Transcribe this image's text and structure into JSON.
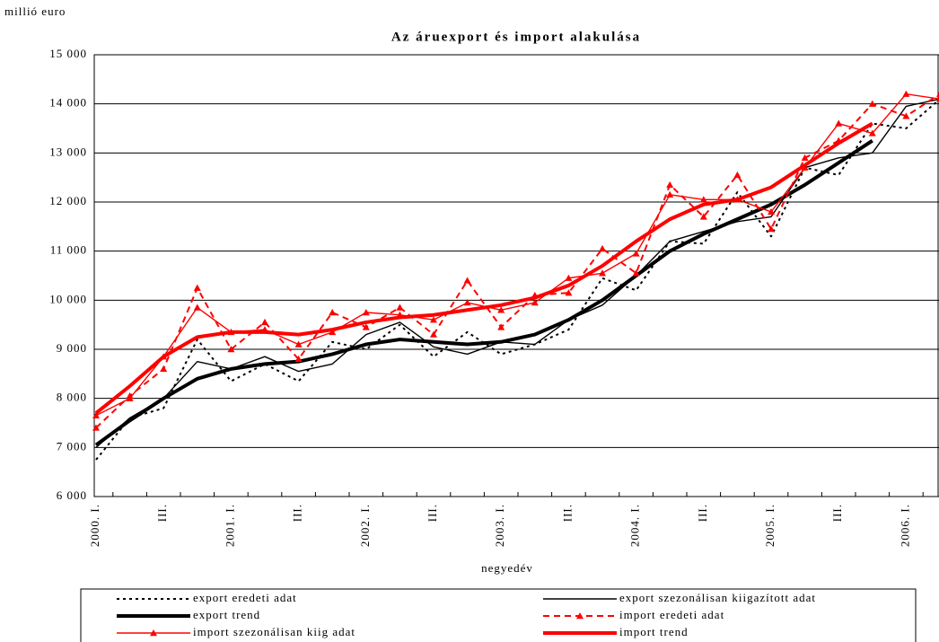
{
  "chart_data": {
    "type": "line",
    "title": "Az áruexport és import alakulása",
    "y_label": "millió euro",
    "x_label": "negyedév",
    "categories": [
      "2000. I.",
      null,
      "III.",
      null,
      "2001. I.",
      null,
      "III.",
      null,
      "2002. I.",
      null,
      "III.",
      null,
      "2003. I.",
      null,
      "III.",
      null,
      "2004. I.",
      null,
      "III.",
      null,
      "2005. I.",
      null,
      "III.",
      null,
      "2006. I.",
      null
    ],
    "ylim": [
      6000,
      15000
    ],
    "yticks": [
      {
        "value": 6000,
        "label": "6 000"
      },
      {
        "value": 7000,
        "label": "7 000"
      },
      {
        "value": 8000,
        "label": "8 000"
      },
      {
        "value": 9000,
        "label": "9 000"
      },
      {
        "value": 10000,
        "label": "10 000"
      },
      {
        "value": 11000,
        "label": "11 000"
      },
      {
        "value": 12000,
        "label": "12 000"
      },
      {
        "value": 13000,
        "label": "13 000"
      },
      {
        "value": 14000,
        "label": "14 000"
      },
      {
        "value": 15000,
        "label": "15 000"
      }
    ],
    "grid": true,
    "legend": "bottom",
    "series": [
      {
        "name": "export eredeti adat",
        "color": "#000000",
        "line_style": "dotted",
        "marker": "none",
        "values": [
          6750,
          7600,
          7800,
          9200,
          8350,
          8700,
          8350,
          9150,
          9000,
          9500,
          8850,
          9350,
          8900,
          9100,
          9400,
          10450,
          10200,
          11200,
          11150,
          12200,
          11300,
          12700,
          12550,
          13600,
          13500,
          14100
        ]
      },
      {
        "name": "export szezonálisan kiigazított adat",
        "color": "#000000",
        "line_style": "thin",
        "marker": "none",
        "values": [
          7000,
          7600,
          8000,
          8750,
          8600,
          8850,
          8550,
          8700,
          9300,
          9550,
          9050,
          8900,
          9150,
          9100,
          9600,
          9900,
          10500,
          11200,
          11400,
          11600,
          11700,
          12700,
          12900,
          13000,
          13950,
          14100
        ]
      },
      {
        "name": "export trend",
        "color": "#000000",
        "line_style": "thick",
        "marker": "none",
        "values": [
          7050,
          7550,
          8000,
          8400,
          8600,
          8700,
          8750,
          8900,
          9100,
          9200,
          9150,
          9100,
          9150,
          9300,
          9600,
          10000,
          10500,
          11000,
          11350,
          11650,
          11950,
          12350,
          12800,
          13250,
          null,
          null
        ]
      },
      {
        "name": "import eredeti adat",
        "color": "#ff0000",
        "line_style": "dashed",
        "marker": "triangle",
        "values": [
          7400,
          8050,
          8600,
          10250,
          9000,
          9550,
          8800,
          9750,
          9450,
          9850,
          9300,
          10400,
          9450,
          10100,
          10150,
          11050,
          10550,
          12350,
          11700,
          12550,
          11450,
          12900,
          13250,
          14000,
          13750,
          14200
        ]
      },
      {
        "name": "import szezonálisan kiig adat",
        "color": "#ff0000",
        "line_style": "thin",
        "marker": "triangle",
        "values": [
          7650,
          8000,
          8850,
          9850,
          9350,
          9400,
          9100,
          9350,
          9750,
          9700,
          9600,
          9950,
          9800,
          9950,
          10450,
          10550,
          10950,
          12150,
          12050,
          12050,
          11800,
          12700,
          13600,
          13400,
          14200,
          14100
        ]
      },
      {
        "name": "import trend",
        "color": "#ff0000",
        "line_style": "thick",
        "marker": "none",
        "values": [
          7700,
          8250,
          8850,
          9250,
          9350,
          9350,
          9300,
          9400,
          9550,
          9650,
          9700,
          9800,
          9900,
          10050,
          10300,
          10700,
          11200,
          11650,
          11950,
          12050,
          12300,
          12750,
          13200,
          13600,
          null,
          null
        ]
      }
    ]
  }
}
